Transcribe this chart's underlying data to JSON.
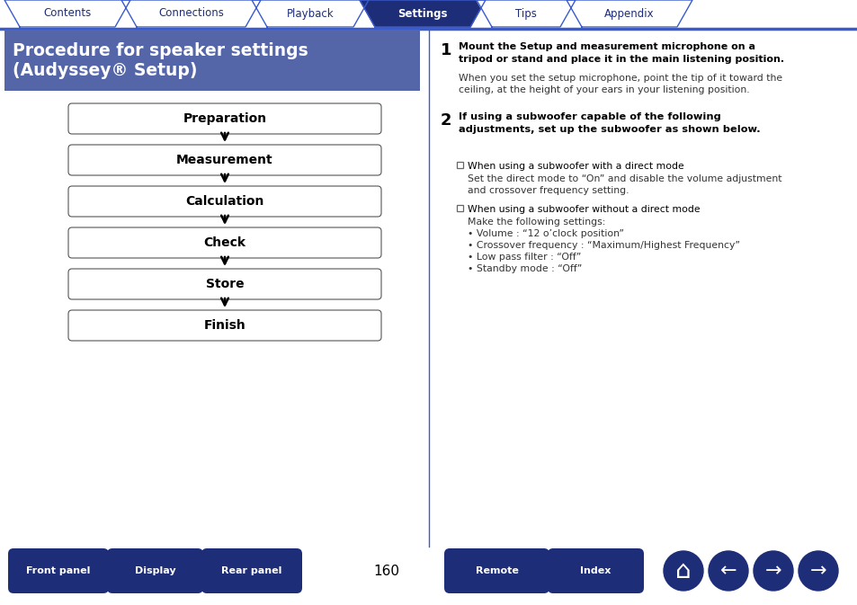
{
  "bg_color": "#ffffff",
  "tab_items": [
    "Contents",
    "Connections",
    "Playback",
    "Settings",
    "Tips",
    "Appendix"
  ],
  "active_tab": "Settings",
  "tab_color_active": "#1e2d78",
  "tab_color_inactive": "#ffffff",
  "tab_text_color_active": "#ffffff",
  "tab_text_color_inactive": "#1e2d78",
  "tab_border_color": "#3a5bcd",
  "header_bg": "#5566a8",
  "header_text_color": "#ffffff",
  "flow_steps": [
    "Preparation",
    "Measurement",
    "Calculation",
    "Check",
    "Store",
    "Finish"
  ],
  "flow_box_color": "#ffffff",
  "flow_box_border": "#555555",
  "flow_text_color": "#000000",
  "flow_arrow_color": "#000000",
  "bottom_buttons": [
    "Front panel",
    "Display",
    "Rear panel",
    "Remote",
    "Index"
  ],
  "bottom_button_color": "#1e2d78",
  "bottom_button_text_color": "#ffffff",
  "page_number": "160",
  "divider_color": "#3a5bcd",
  "right_text_color": "#000000",
  "normal_text_color": "#333333"
}
